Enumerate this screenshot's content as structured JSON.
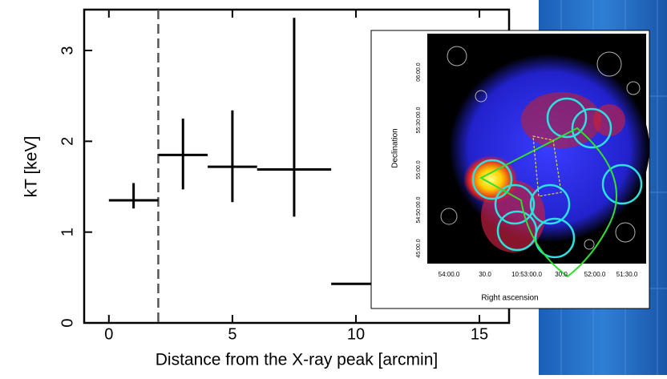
{
  "chart_data": {
    "type": "errorbar",
    "x_label": "Distance from the X-ray peak [arcmin]",
    "y_label": "kT [keV]",
    "xlim": [
      -1,
      16.2
    ],
    "ylim": [
      0,
      3.45
    ],
    "xticks": [
      0,
      5,
      10,
      15
    ],
    "yticks": [
      0,
      1,
      2,
      3
    ],
    "color": "#000000",
    "reference_x": 2,
    "series": [
      {
        "name": null,
        "x": [
          1,
          3,
          5,
          7.5,
          10.5
        ],
        "xerr": [
          1,
          1,
          1,
          1.5,
          1.5
        ],
        "values": [
          1.35,
          1.85,
          1.72,
          1.69,
          0.43
        ],
        "y_low": [
          1.26,
          1.47,
          1.33,
          1.17,
          null
        ],
        "y_high": [
          1.54,
          2.25,
          2.34,
          3.36,
          null
        ]
      }
    ]
  },
  "inset": {
    "x_label": "Right ascension",
    "y_label": "Declination",
    "x_tick_labels": [
      "54:00.0",
      "30.0",
      "10:53:00.0",
      "30.0",
      "52:00.0",
      "51:30.0"
    ],
    "y_tick_labels": [
      "06:00.0",
      "55:30:00.0",
      "55:00.0",
      "54:50:00.0",
      "45:00.0"
    ]
  }
}
